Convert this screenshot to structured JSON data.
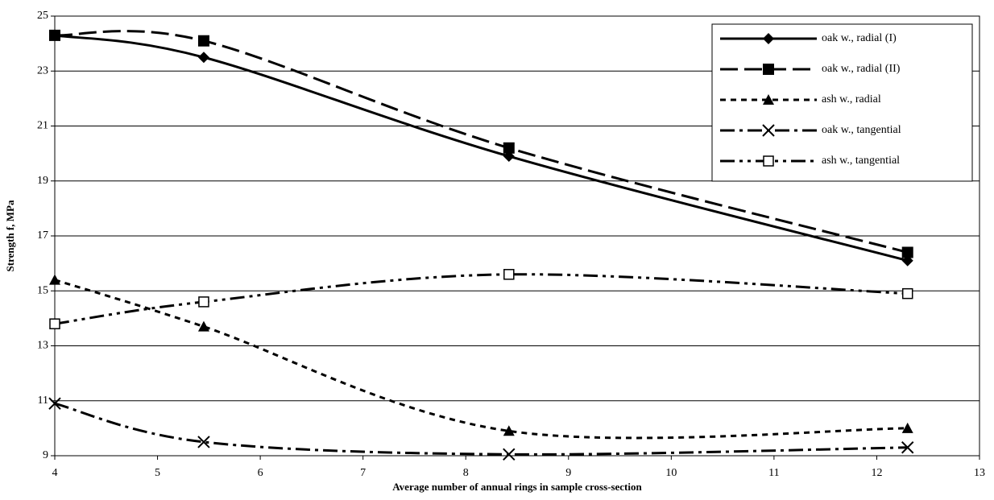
{
  "chart_data": {
    "type": "line",
    "x_label": "Average number of annual rings in sample cross-section",
    "y_label": "Strength f, MPa",
    "xlim": [
      4,
      13
    ],
    "xticks": [
      4,
      5,
      6,
      7,
      8,
      9,
      10,
      11,
      12,
      13
    ],
    "ylim": [
      9,
      25
    ],
    "yticks": [
      9,
      11,
      13,
      15,
      17,
      19,
      21,
      23,
      25
    ],
    "grid": true,
    "smooth": true,
    "legend_position": "upper right",
    "series": [
      {
        "name": "oak w., radial (I)",
        "color": "#000000",
        "line_style": "solid",
        "marker": "diamond",
        "x": [
          4,
          5.45,
          8.42,
          12.3
        ],
        "values": [
          24.3,
          23.5,
          19.9,
          16.1
        ]
      },
      {
        "name": "oak w., radial (II)",
        "color": "#000000",
        "line_style": "dashed",
        "marker": "square",
        "x": [
          4,
          5.45,
          8.42,
          12.3
        ],
        "values": [
          24.3,
          24.1,
          20.2,
          16.4
        ]
      },
      {
        "name": "ash w., radial",
        "color": "#000000",
        "line_style": "dotted",
        "marker": "triangle",
        "x": [
          4,
          5.45,
          8.42,
          12.3
        ],
        "values": [
          15.4,
          13.7,
          9.9,
          10.0
        ]
      },
      {
        "name": "oak w., tangential",
        "color": "#000000",
        "line_style": "dashdot",
        "marker": "x",
        "x": [
          4,
          5.45,
          8.42,
          12.3
        ],
        "values": [
          10.9,
          9.5,
          9.05,
          9.3
        ]
      },
      {
        "name": "ash w., tangential",
        "color": "#000000",
        "line_style": "dashdotdot",
        "marker": "open-square",
        "x": [
          4,
          5.45,
          8.42,
          12.3
        ],
        "values": [
          13.8,
          14.6,
          15.6,
          14.9
        ]
      }
    ]
  }
}
